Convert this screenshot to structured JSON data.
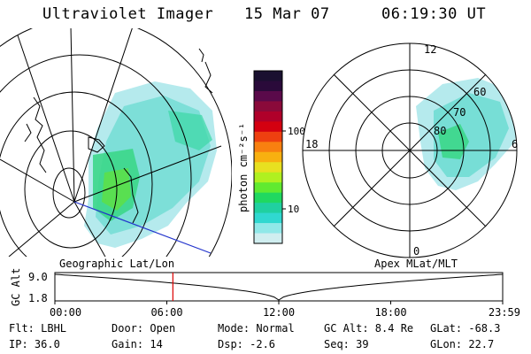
{
  "header": {
    "instrument": "Ultraviolet Imager",
    "date": "15 Mar 07",
    "time": "06:19:30 UT"
  },
  "left_panel": {
    "caption": "Geographic Lat/Lon"
  },
  "right_panel": {
    "caption": "Apex MLat/MLT",
    "mlt_labels": [
      "12",
      "18",
      "6",
      "0"
    ],
    "mlat_labels": [
      "60",
      "70",
      "80"
    ]
  },
  "colorbar": {
    "unit_label": "photon cm⁻²s⁻¹",
    "ticks": [
      "100",
      "10"
    ],
    "colors": [
      "#1a1030",
      "#2a0a3a",
      "#5a0a4a",
      "#8a0a3a",
      "#b0002a",
      "#d40010",
      "#ee4010",
      "#f88010",
      "#f8b010",
      "#e8e020",
      "#b0f020",
      "#60ea30",
      "#20d860",
      "#20d0a0",
      "#30d8d0",
      "#90e8e8",
      "#d0eef0"
    ]
  },
  "altitude_plot": {
    "ylabel": "GC Alt",
    "yticks": [
      "9.0",
      "1.8"
    ],
    "xticks": [
      "00:00",
      "06:00",
      "12:00",
      "18:00",
      "23:59"
    ],
    "current_time_hours": 6.325
  },
  "status": {
    "flt": "Flt: LBHL",
    "door": "Door: Open",
    "mode": "Mode: Normal",
    "gc_alt": "GC Alt: 8.4 Re",
    "glat": "GLat: -68.3",
    "ip": "IP: 36.0",
    "gain": "Gain: 14",
    "dsp": "Dsp:    -2.6",
    "seq": "Seq: 39",
    "glon": "GLon:  22.7"
  }
}
